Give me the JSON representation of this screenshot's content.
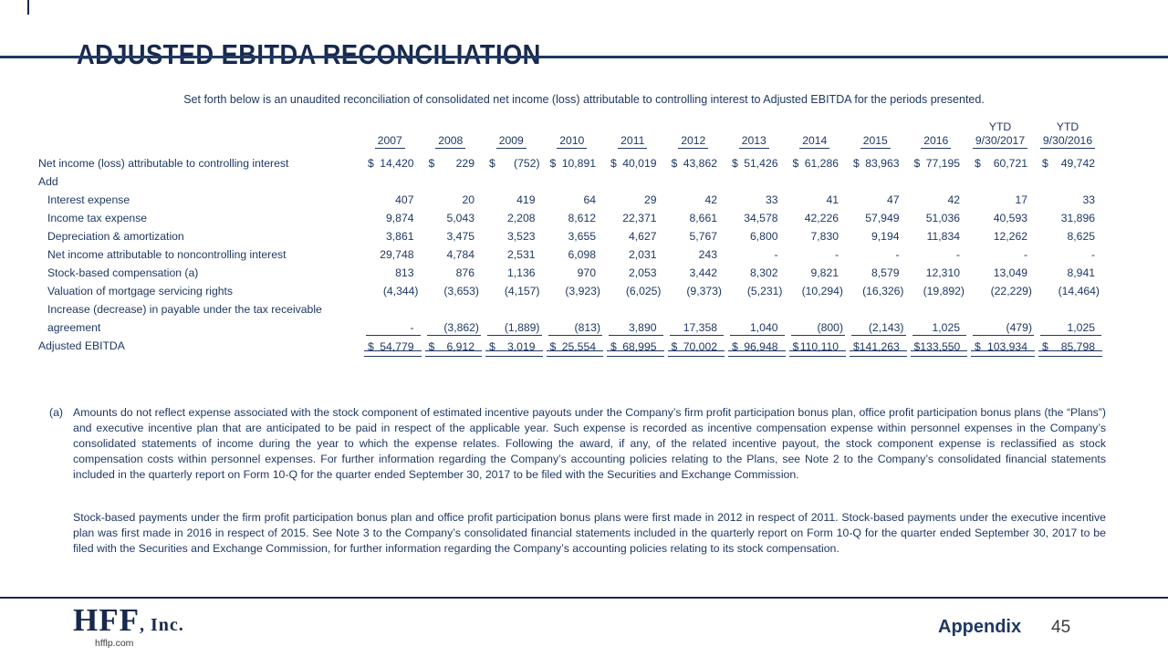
{
  "page": {
    "title": "ADJUSTED EBITDA RECONCILIATION",
    "subtitle": "Set forth below is an unaudited reconciliation of consolidated net income (loss) attributable to controlling interest to Adjusted EBITDA for the periods presented."
  },
  "colors": {
    "navy": "#1f3864",
    "title_navy": "#17294e",
    "page_number_gray": "#3d3d3d"
  },
  "table": {
    "columns": [
      {
        "ytd": "",
        "label": "2007"
      },
      {
        "ytd": "",
        "label": "2008"
      },
      {
        "ytd": "",
        "label": "2009"
      },
      {
        "ytd": "",
        "label": "2010"
      },
      {
        "ytd": "",
        "label": "2011"
      },
      {
        "ytd": "",
        "label": "2012"
      },
      {
        "ytd": "",
        "label": "2013"
      },
      {
        "ytd": "",
        "label": "2014"
      },
      {
        "ytd": "",
        "label": "2015"
      },
      {
        "ytd": "",
        "label": "2016"
      },
      {
        "ytd": "YTD",
        "label": "9/30/2017"
      },
      {
        "ytd": "YTD",
        "label": "9/30/2016"
      }
    ],
    "rows": [
      {
        "label": "Net income (loss) attributable to controlling interest",
        "indent": 0,
        "dollar": true,
        "values": [
          "14,420",
          "229",
          "(752)",
          "10,891",
          "40,019",
          "43,862",
          "51,426",
          "61,286",
          "83,963",
          "77,195",
          "60,721",
          "49,742"
        ]
      },
      {
        "label": "Add",
        "indent": 0,
        "values": []
      },
      {
        "label": "Interest expense",
        "indent": 1,
        "values": [
          "407",
          "20",
          "419",
          "64",
          "29",
          "42",
          "33",
          "41",
          "47",
          "42",
          "17",
          "33"
        ]
      },
      {
        "label": "Income tax expense",
        "indent": 1,
        "values": [
          "9,874",
          "5,043",
          "2,208",
          "8,612",
          "22,371",
          "8,661",
          "34,578",
          "42,226",
          "57,949",
          "51,036",
          "40,593",
          "31,896"
        ]
      },
      {
        "label": "Depreciation & amortization",
        "indent": 1,
        "values": [
          "3,861",
          "3,475",
          "3,523",
          "3,655",
          "4,627",
          "5,767",
          "6,800",
          "7,830",
          "9,194",
          "11,834",
          "12,262",
          "8,625"
        ]
      },
      {
        "label": "Net income attributable to noncontrolling interest",
        "indent": 1,
        "values": [
          "29,748",
          "4,784",
          "2,531",
          "6,098",
          "2,031",
          "243",
          "-",
          "-",
          "-",
          "-",
          "-",
          "-"
        ]
      },
      {
        "label": "Stock-based compensation (a)",
        "indent": 1,
        "values": [
          "813",
          "876",
          "1,136",
          "970",
          "2,053",
          "3,442",
          "8,302",
          "9,821",
          "8,579",
          "12,310",
          "13,049",
          "8,941"
        ]
      },
      {
        "label": "Valuation of mortgage servicing rights",
        "indent": 1,
        "values": [
          "(4,344)",
          "(3,653)",
          "(4,157)",
          "(3,923)",
          "(6,025)",
          "(9,373)",
          "(5,231)",
          "(10,294)",
          "(16,326)",
          "(19,892)",
          "(22,229)",
          "(14,464)"
        ]
      },
      {
        "label": "Increase (decrease) in payable under the tax receivable",
        "indent": 1,
        "values": []
      },
      {
        "label": "agreement",
        "indent": 1,
        "rule": true,
        "values": [
          "-",
          "(3,862)",
          "(1,889)",
          "(813)",
          "3,890",
          "17,358",
          "1,040",
          "(800)",
          "(2,143)",
          "1,025",
          "(479)",
          "1,025"
        ]
      },
      {
        "label": "Adjusted EBITDA",
        "indent": 0,
        "dollar": true,
        "total": true,
        "values": [
          "54,779",
          "6,912",
          "3,019",
          "25,554",
          "68,995",
          "70,002",
          "96,948",
          "110,110",
          "141,263",
          "133,550",
          "103,934",
          "85,798"
        ]
      }
    ]
  },
  "footnotes": {
    "a_marker": "(a)",
    "a_text": "Amounts do not reflect expense associated with the stock component of estimated incentive payouts under the Company’s firm profit participation bonus plan, office profit participation bonus plans (the “Plans”) and executive incentive plan that are anticipated to be paid in respect of the applicable year. Such expense is recorded as incentive compensation expense within personnel expenses in the Company’s consolidated statements of income during the year to which the expense relates. Following the award, if any, of the related incentive payout, the stock component expense is reclassified as stock compensation costs within personnel expenses. For further information regarding the Company’s accounting policies relating to the Plans, see Note 2 to the Company’s consolidated financial statements included in the quarterly report on Form 10-Q for the quarter ended September 30, 2017 to be filed with the Securities and Exchange Commission.",
    "p2_text": "Stock-based payments under the firm profit participation bonus plan and office profit participation bonus plans were first made in 2012 in respect of 2011. Stock-based payments under the executive incentive plan was first made in 2016 in respect of 2015. See Note 3 to the Company’s consolidated financial statements included in the quarterly report on Form 10-Q for the quarter ended September 30, 2017 to be filed with the Securities and Exchange Commission, for further information regarding the Company’s accounting policies relating to its stock compensation."
  },
  "footer": {
    "logo_main": "HFF",
    "logo_suffix": ", Inc.",
    "logo_domain": "hfflp.com",
    "appendix_label": "Appendix",
    "page_number": "45"
  }
}
